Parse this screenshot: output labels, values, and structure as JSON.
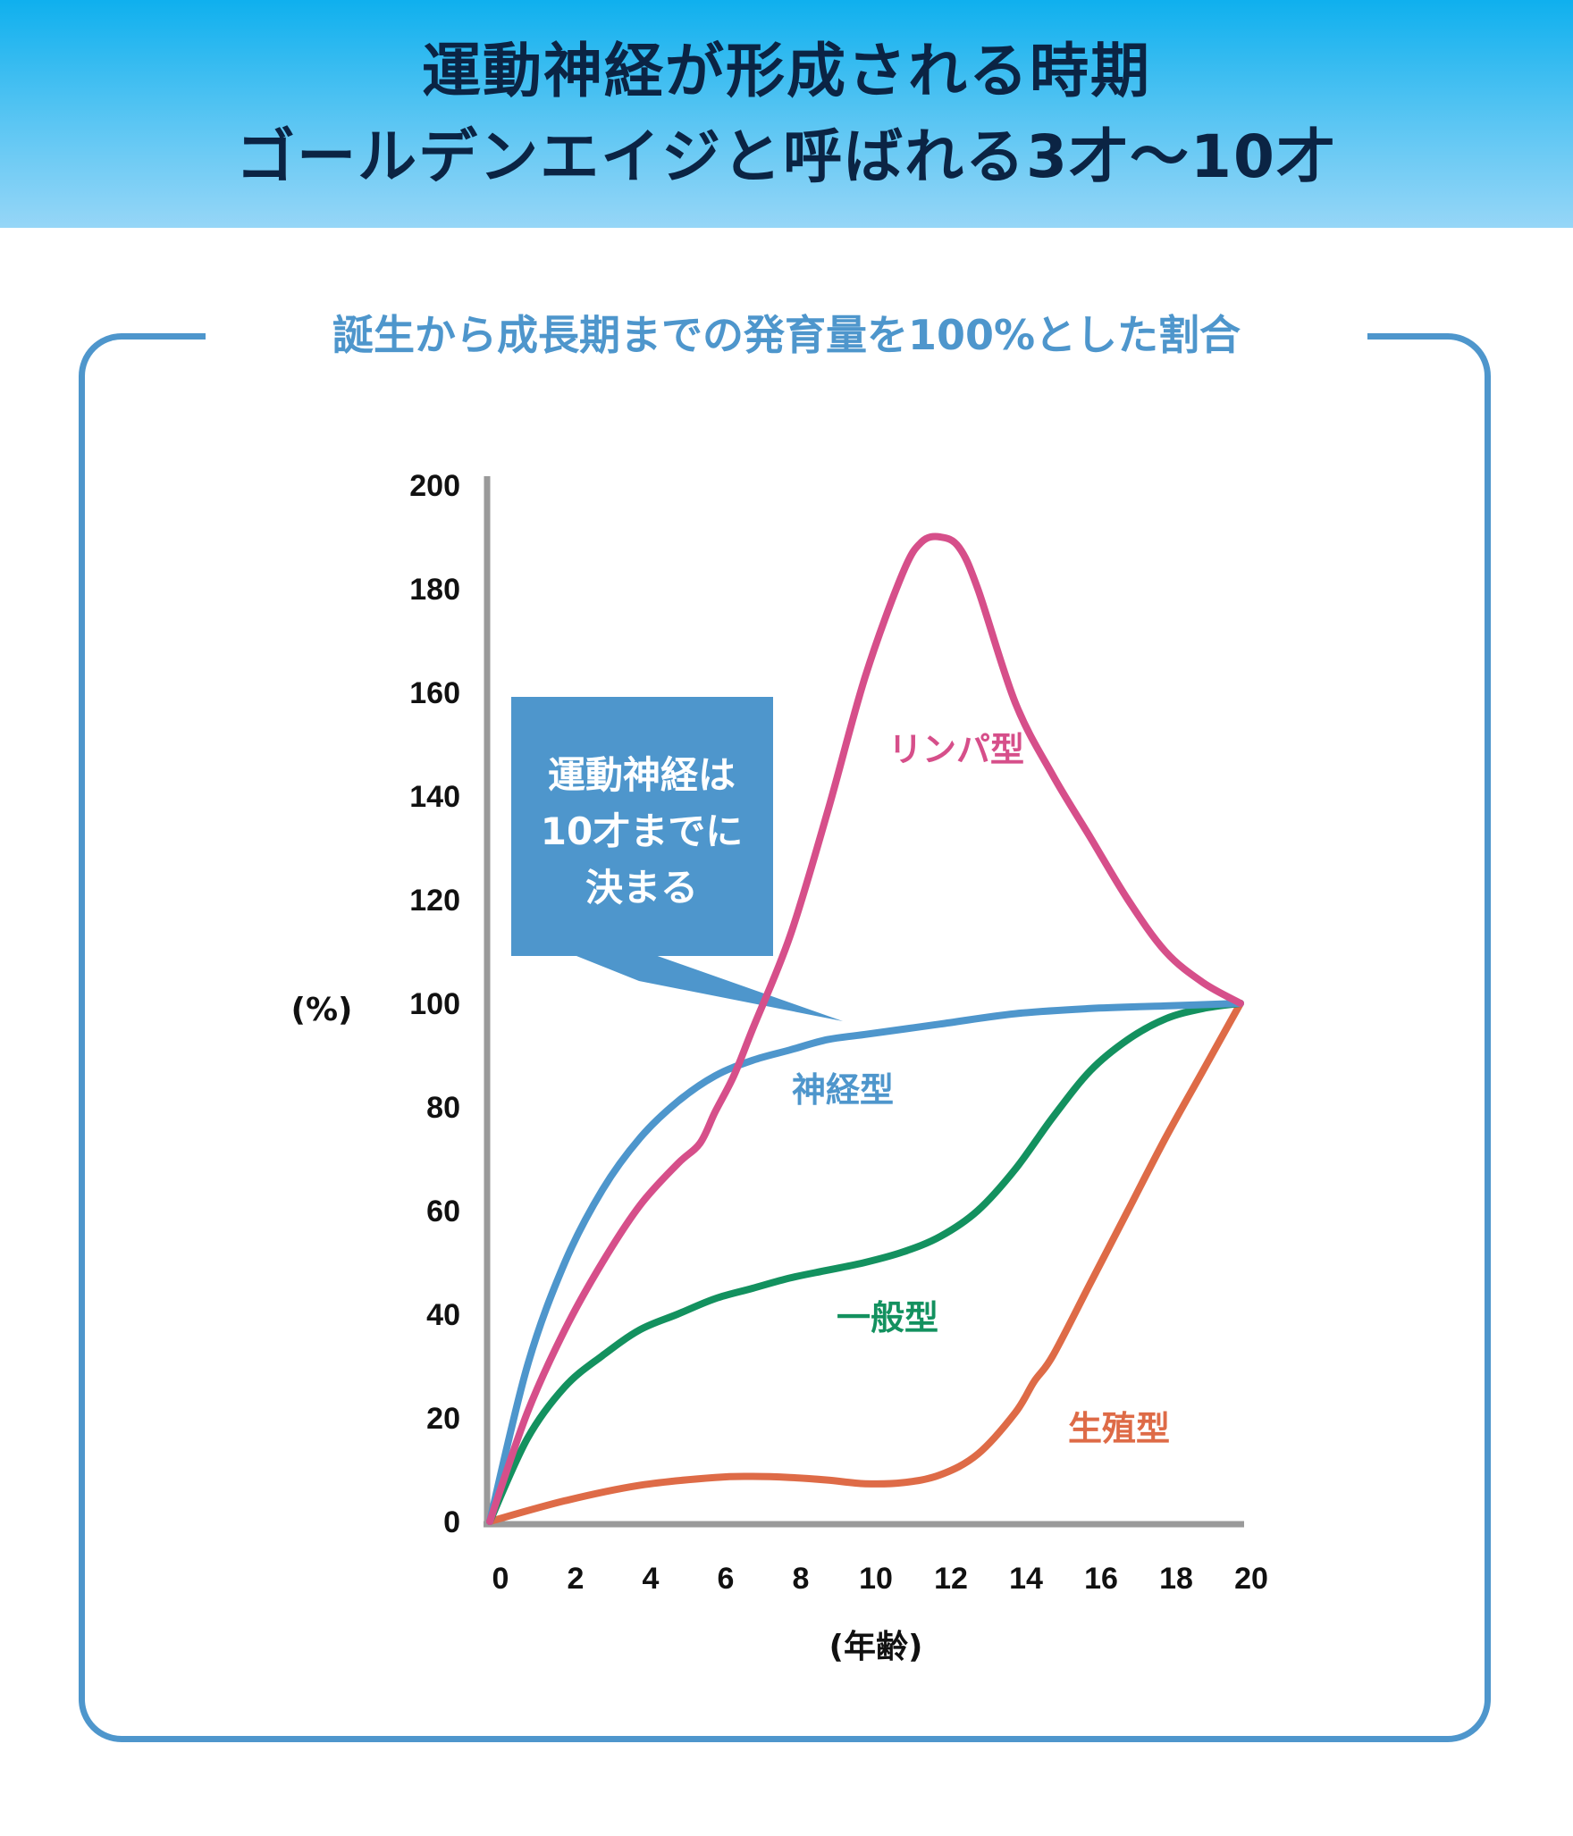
{
  "header": {
    "title_line1": "運動神経が形成される時期",
    "title_line2": "ゴールデンエイジと呼ばれる3才〜10才",
    "background_top": "#0fb0ee",
    "text_color": "#0b2444"
  },
  "panel": {
    "subtitle": "誕生から成長期までの発育量を100%とした割合",
    "border_color": "#4e96cc"
  },
  "chart_data": {
    "type": "line",
    "title": "誕生から成長期までの発育量を100%とした割合",
    "xlabel": "(年齢)",
    "ylabel": "(%)",
    "xlim": [
      0,
      20
    ],
    "ylim": [
      0,
      200
    ],
    "xticks": [
      "0",
      "2",
      "4",
      "6",
      "8",
      "10",
      "12",
      "14",
      "16",
      "18",
      "20"
    ],
    "yticks": [
      "0",
      "20",
      "40",
      "60",
      "80",
      "100",
      "120",
      "140",
      "160",
      "180",
      "200"
    ],
    "grid": false,
    "series": [
      {
        "name": "リンパ型",
        "color": "#d64f8a",
        "x": [
          0,
          1,
          2,
          3,
          4,
          5,
          5.6,
          6,
          6.5,
          7,
          8,
          9,
          10,
          11,
          11.5,
          12,
          12.5,
          13,
          14,
          15,
          16,
          17,
          18,
          19,
          20
        ],
        "y": [
          0,
          21,
          37,
          50,
          61,
          69,
          73,
          79,
          86,
          95,
          113,
          137,
          163,
          183,
          189,
          190,
          188,
          180,
          158,
          144,
          132,
          120,
          110,
          104,
          100
        ]
      },
      {
        "name": "神経型",
        "color": "#4e96cc",
        "x": [
          0,
          1,
          2,
          3,
          4,
          5,
          6,
          7,
          8,
          9,
          10,
          12,
          14,
          16,
          18,
          20
        ],
        "y": [
          0,
          30,
          50,
          64,
          74,
          81,
          86,
          89,
          91,
          93,
          94,
          96,
          98,
          99,
          99.5,
          100
        ]
      },
      {
        "name": "一般型",
        "color": "#13915f",
        "x": [
          0,
          1,
          2,
          3,
          4,
          5,
          6,
          7,
          8,
          9,
          10,
          11,
          12,
          13,
          14,
          15,
          16,
          17,
          18,
          19,
          20
        ],
        "y": [
          0,
          16,
          26,
          32,
          37,
          40,
          43,
          45,
          47,
          48.5,
          50,
          52,
          55,
          60,
          68,
          78,
          87,
          93,
          97,
          99,
          100
        ]
      },
      {
        "name": "生殖型",
        "color": "#de6b47",
        "x": [
          0,
          2,
          4,
          6,
          7,
          8,
          9,
          10,
          11,
          12,
          13,
          14,
          14.5,
          15,
          16,
          17,
          18,
          19,
          20
        ],
        "y": [
          0,
          4,
          7,
          8.5,
          8.7,
          8.5,
          8,
          7.3,
          7.5,
          9,
          13,
          21,
          27,
          32,
          46,
          60,
          74,
          87,
          100
        ]
      }
    ],
    "annotations": [
      {
        "text": "運動神経は",
        "line": 1
      },
      {
        "text": "10才までに",
        "line": 2
      },
      {
        "text": "決まる",
        "line": 3
      }
    ]
  },
  "callout": {
    "line1": "運動神経は",
    "line2": "10才までに",
    "line3": "決まる",
    "color": "#4e96cc"
  }
}
